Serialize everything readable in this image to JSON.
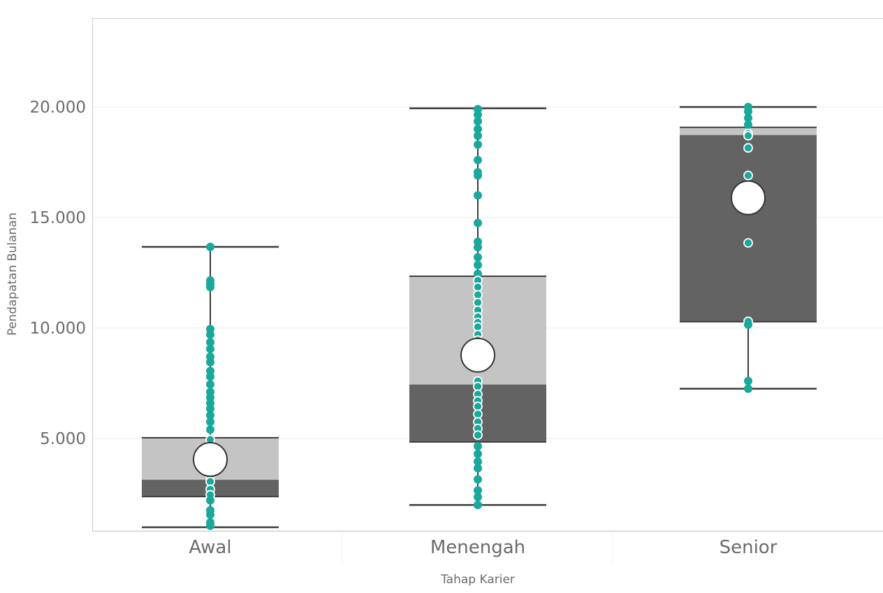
{
  "chart_data": {
    "type": "box",
    "title": "",
    "xlabel": "Tahap Karier",
    "ylabel": "Pendapatan Bulanan",
    "ylim": [
      0,
      24000
    ],
    "yticks": [
      5000,
      10000,
      15000,
      20000
    ],
    "ytick_labels": [
      "5.000",
      "10.000",
      "15.000",
      "20.000"
    ],
    "grid": true,
    "categories": [
      "Awal",
      "Menengah",
      "Senior"
    ],
    "colors": {
      "box_upper": "#c4c4c4",
      "box_lower": "#636363",
      "whisker": "#3a3a3a",
      "points": "#1aa79c",
      "mean_marker": "#ffffff"
    },
    "series": [
      {
        "name": "Awal",
        "whisker_low": 980,
        "q1": 2370,
        "median": 3130,
        "q3": 5030,
        "whisker_high": 13670,
        "mean": 4050,
        "points": [
          13670,
          12150,
          12000,
          11850,
          9950,
          9700,
          9350,
          9050,
          8700,
          8450,
          8050,
          7800,
          7450,
          7100,
          6850,
          6600,
          6350,
          6050,
          5750,
          5400,
          4950,
          3300,
          3050,
          2700,
          2450,
          2200,
          1750,
          1550,
          1200,
          1050
        ]
      },
      {
        "name": "Menengah",
        "whisker_low": 1990,
        "q1": 4840,
        "median": 7440,
        "q3": 12340,
        "whisker_high": 19940,
        "mean": 8770,
        "points": [
          19900,
          19650,
          19350,
          19000,
          18700,
          18300,
          17600,
          17050,
          16900,
          16000,
          14750,
          13900,
          13650,
          13200,
          12850,
          12450,
          12150,
          11850,
          11500,
          11150,
          10800,
          10500,
          10250,
          10050,
          9700,
          9450,
          7600,
          7350,
          7000,
          6700,
          6450,
          6100,
          5750,
          5450,
          5150,
          4650,
          4300,
          3950,
          3650,
          3150,
          2650,
          2350,
          1990
        ]
      },
      {
        "name": "Senior",
        "whisker_low": 7250,
        "q1": 10280,
        "median": 18730,
        "q3": 19080,
        "whisker_high": 20000,
        "mean": 15890,
        "points": [
          20000,
          19800,
          19500,
          19200,
          18800,
          18700,
          18150,
          16900,
          13850,
          10300,
          10150,
          7600,
          7250
        ]
      }
    ]
  }
}
